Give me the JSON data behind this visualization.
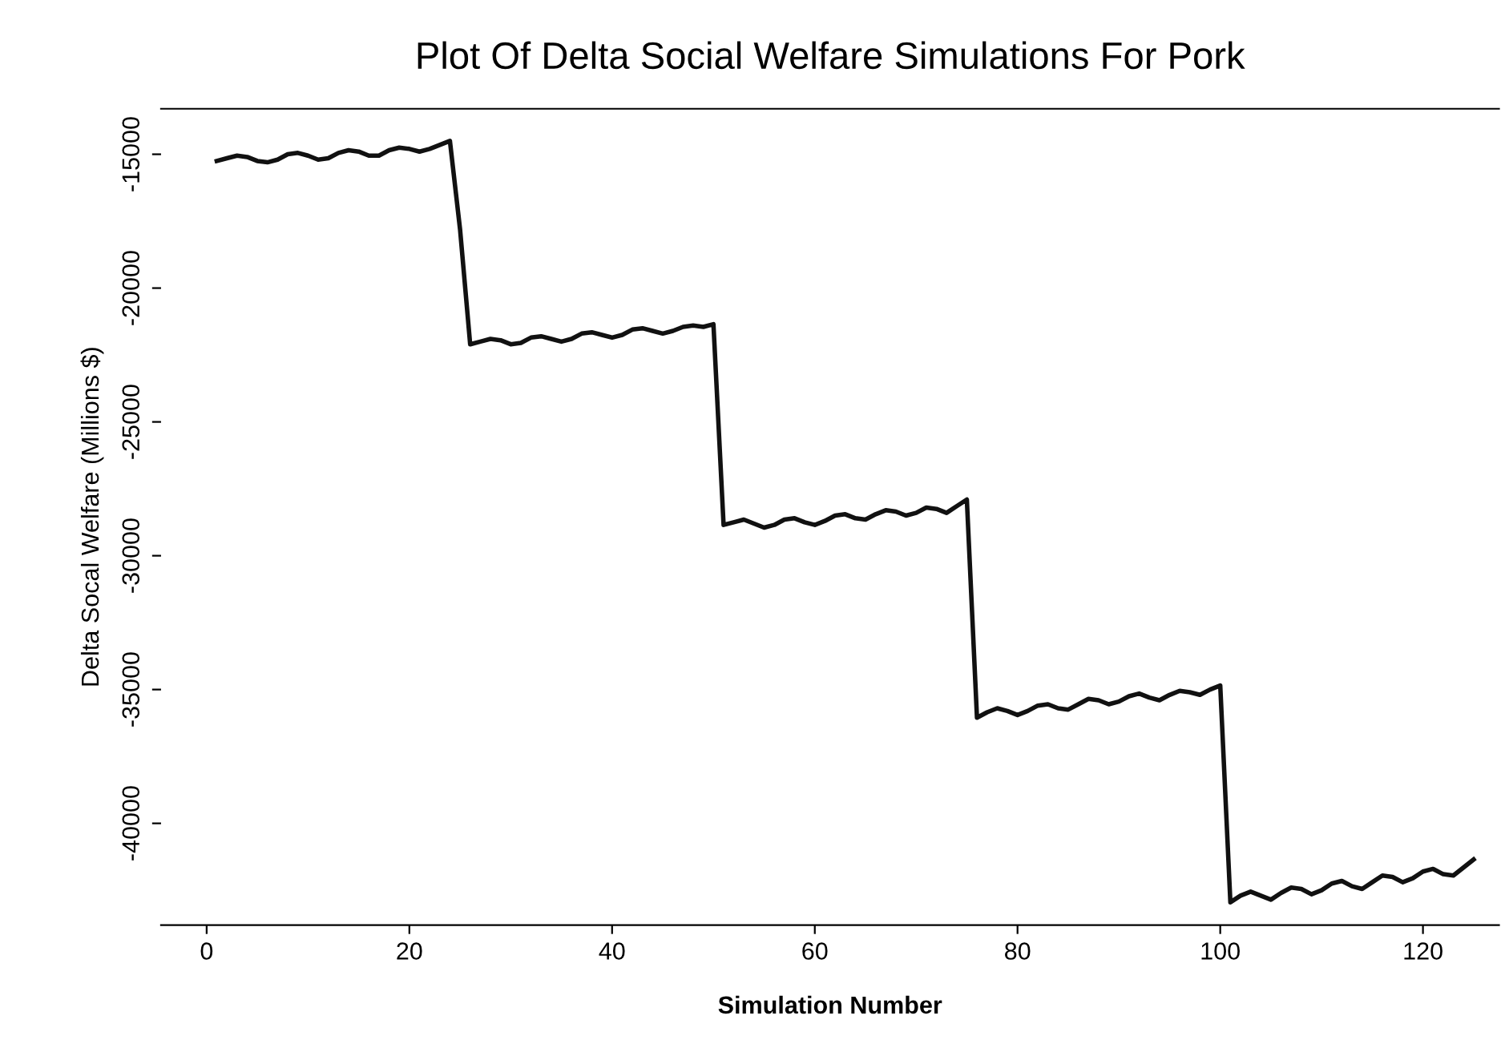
{
  "chart_data": {
    "type": "line",
    "title": "Plot Of Delta Social Welfare Simulations For Pork",
    "xlabel": "Simulation Number",
    "ylabel": "Delta Socal Welfare (Millions $)",
    "x": [
      1,
      2,
      3,
      4,
      5,
      6,
      7,
      8,
      9,
      10,
      11,
      12,
      13,
      14,
      15,
      16,
      17,
      18,
      19,
      20,
      21,
      22,
      23,
      24,
      25,
      26,
      27,
      28,
      29,
      30,
      31,
      32,
      33,
      34,
      35,
      36,
      37,
      38,
      39,
      40,
      41,
      42,
      43,
      44,
      45,
      46,
      47,
      48,
      49,
      50,
      51,
      52,
      53,
      54,
      55,
      56,
      57,
      58,
      59,
      60,
      61,
      62,
      63,
      64,
      65,
      66,
      67,
      68,
      69,
      70,
      71,
      72,
      73,
      74,
      75,
      76,
      77,
      78,
      79,
      80,
      81,
      82,
      83,
      84,
      85,
      86,
      87,
      88,
      89,
      90,
      91,
      92,
      93,
      94,
      95,
      96,
      97,
      98,
      99,
      100,
      101,
      102,
      103,
      104,
      105,
      106,
      107,
      108,
      109,
      110,
      111,
      112,
      113,
      114,
      115,
      116,
      117,
      118,
      119,
      120,
      121,
      122,
      123,
      124,
      125
    ],
    "series": [
      {
        "color": "#111111",
        "values": [
          -15250,
          -15150,
          -15050,
          -15100,
          -15250,
          -15300,
          -15200,
          -15000,
          -14950,
          -15050,
          -15200,
          -15150,
          -14950,
          -14850,
          -14900,
          -15050,
          -15050,
          -14850,
          -14750,
          -14800,
          -14900,
          -14800,
          -14650,
          -14500,
          -17800,
          -22100,
          -22000,
          -21900,
          -21950,
          -22100,
          -22050,
          -21850,
          -21800,
          -21900,
          -22000,
          -21900,
          -21700,
          -21650,
          -21750,
          -21850,
          -21750,
          -21550,
          -21500,
          -21600,
          -21700,
          -21600,
          -21450,
          -21400,
          -21450,
          -21350,
          -28850,
          -28750,
          -28650,
          -28800,
          -28950,
          -28850,
          -28650,
          -28600,
          -28750,
          -28850,
          -28700,
          -28500,
          -28450,
          -28600,
          -28650,
          -28450,
          -28300,
          -28350,
          -28500,
          -28400,
          -28200,
          -28250,
          -28400,
          -28150,
          -27900,
          -36050,
          -35850,
          -35700,
          -35800,
          -35950,
          -35800,
          -35600,
          -35550,
          -35700,
          -35750,
          -35550,
          -35350,
          -35400,
          -35550,
          -35450,
          -35250,
          -35150,
          -35300,
          -35400,
          -35200,
          -35050,
          -35100,
          -35200,
          -35000,
          -34850,
          -42950,
          -42700,
          -42550,
          -42700,
          -42850,
          -42600,
          -42400,
          -42450,
          -42650,
          -42500,
          -42250,
          -42150,
          -42350,
          -42450,
          -42200,
          -41950,
          -42000,
          -42200,
          -42050,
          -41800,
          -41700,
          -41900,
          -41950,
          -41650,
          -41350
        ]
      }
    ],
    "xlim": [
      -4.5,
      127.5
    ],
    "xticks": [
      0,
      20,
      40,
      60,
      80,
      100,
      120
    ],
    "ylim": [
      -43800,
      -13300
    ],
    "yticks": [
      -40000,
      -35000,
      -30000,
      -25000,
      -20000,
      -15000
    ],
    "grid": false,
    "marker": "none",
    "line_style": "solid"
  }
}
